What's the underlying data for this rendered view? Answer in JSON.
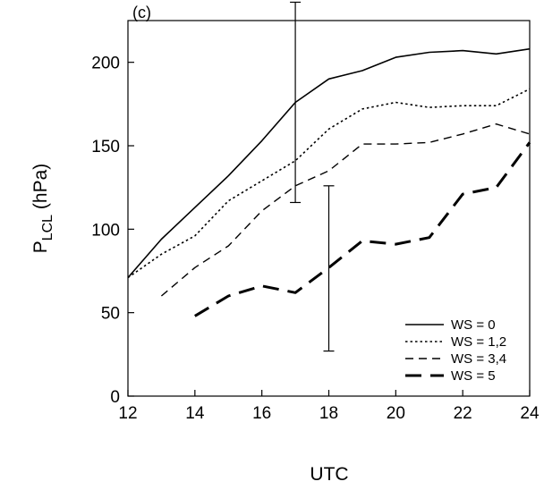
{
  "chart_data": {
    "type": "line",
    "panel_label": "(c)",
    "xlabel": "UTC",
    "ylabel_main": "P",
    "ylabel_sub": "LCL",
    "ylabel_unit": " (hPa)",
    "xlim": [
      12,
      24
    ],
    "ylim": [
      0,
      225
    ],
    "x_ticks": [
      12,
      14,
      16,
      18,
      20,
      22,
      24
    ],
    "y_ticks": [
      0,
      50,
      100,
      150,
      200
    ],
    "grid": false,
    "legend_position": "bottom-right",
    "series": [
      {
        "name": "WS = 0",
        "style": "solid",
        "x": [
          12,
          13,
          14,
          15,
          16,
          17,
          18,
          19,
          20,
          21,
          22,
          23,
          24
        ],
        "y": [
          71,
          94,
          113,
          132,
          153,
          176,
          190,
          195,
          203,
          206,
          207,
          205,
          208
        ]
      },
      {
        "name": "WS = 1,2",
        "style": "dotted",
        "x": [
          12,
          13,
          14,
          15,
          16,
          17,
          18,
          19,
          20,
          21,
          22,
          23,
          24
        ],
        "y": [
          71,
          85,
          96,
          117,
          129,
          141,
          160,
          172,
          176,
          173,
          174,
          174,
          184
        ]
      },
      {
        "name": "WS = 3,4",
        "style": "dashed",
        "x": [
          13,
          14,
          15,
          16,
          17,
          18,
          19,
          20,
          21,
          22,
          23,
          24
        ],
        "y": [
          60,
          77,
          90,
          111,
          126,
          135,
          151,
          151,
          152,
          157,
          163,
          157
        ]
      },
      {
        "name": "WS = 5",
        "style": "longdash",
        "x": [
          14,
          15,
          16,
          17,
          18,
          19,
          20,
          21,
          22,
          23,
          24
        ],
        "y": [
          48,
          60,
          66,
          62,
          77,
          93,
          91,
          95,
          121,
          125,
          152
        ]
      }
    ],
    "error_bars": [
      {
        "x": 17,
        "low": 116,
        "high": 236
      },
      {
        "x": 18,
        "low": 27,
        "high": 126
      }
    ]
  }
}
